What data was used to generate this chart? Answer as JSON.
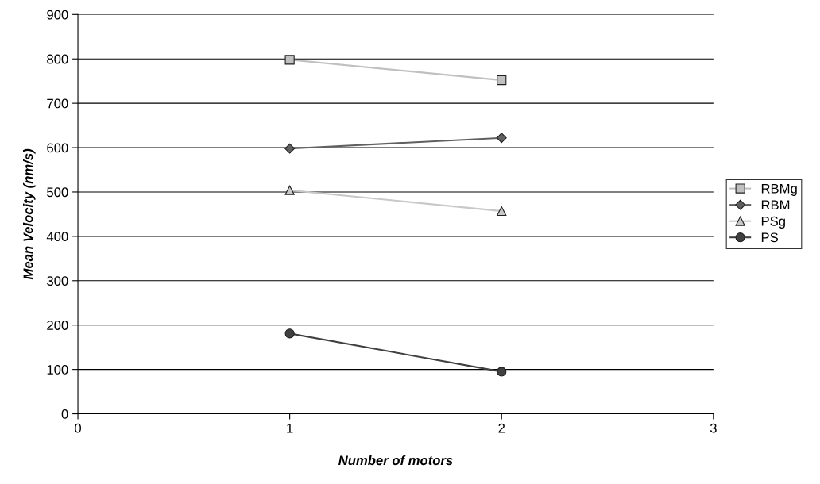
{
  "chart_data": {
    "type": "line",
    "xlabel": "Number of motors",
    "ylabel": "Mean Velocity (nm/s)",
    "x": [
      1,
      2
    ],
    "xlim": [
      0,
      3
    ],
    "xticks": [
      0,
      1,
      2,
      3
    ],
    "ylim": [
      0,
      900
    ],
    "yticks": [
      0,
      100,
      200,
      300,
      400,
      500,
      600,
      700,
      800,
      900
    ],
    "grid": "y",
    "legend": "right",
    "series": [
      {
        "name": "RBMg",
        "color": "#c0c0c0",
        "marker": "square",
        "values": [
          798,
          752
        ]
      },
      {
        "name": "RBM",
        "color": "#606060",
        "marker": "diamond",
        "values": [
          598,
          622
        ]
      },
      {
        "name": "PSg",
        "color": "#c8c8c8",
        "marker": "triangle",
        "values": [
          504,
          457
        ]
      },
      {
        "name": "PS",
        "color": "#404040",
        "marker": "circle",
        "values": [
          181,
          95
        ]
      }
    ]
  }
}
